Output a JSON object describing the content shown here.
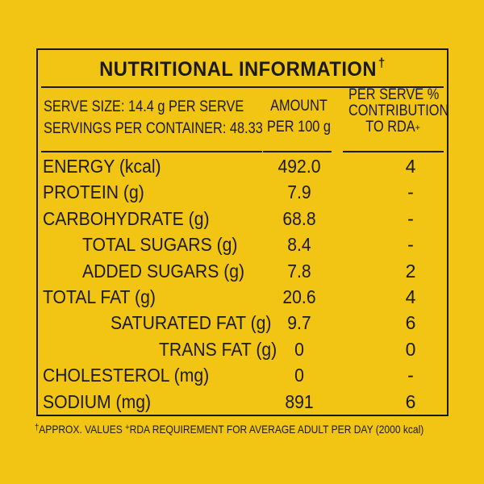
{
  "title": "NUTRITIONAL INFORMATION",
  "title_marker": "†",
  "header": {
    "serve_size": "SERVE SIZE: 14.4 g PER SERVE",
    "servings": "SERVINGS PER CONTAINER: 48.33",
    "amount_line1": "AMOUNT",
    "amount_line2": "PER 100 g",
    "rda_line1": "PER SERVE %",
    "rda_line2": "CONTRIBUTION",
    "rda_line3": "TO RDA",
    "rda_marker": "+"
  },
  "rows": [
    {
      "label": "ENERGY (kcal)",
      "amount": "492.0",
      "rda": "4"
    },
    {
      "label": "PROTEIN (g)",
      "amount": "7.9",
      "rda": "-"
    },
    {
      "label": "CARBOHYDRATE (g)",
      "amount": "68.8",
      "rda": "-"
    },
    {
      "label": "TOTAL SUGARS (g)",
      "amount": "8.4",
      "rda": "-"
    },
    {
      "label": "ADDED SUGARS (g)",
      "amount": "7.8",
      "rda": "2"
    },
    {
      "label": "TOTAL FAT (g)",
      "amount": "20.6",
      "rda": "4"
    },
    {
      "label": "SATURATED FAT (g)",
      "amount": "9.7",
      "rda": "6"
    },
    {
      "label": "TRANS FAT (g)",
      "amount": "0",
      "rda": "0"
    },
    {
      "label": "CHOLESTEROL (mg)",
      "amount": "0",
      "rda": "-"
    },
    {
      "label": "SODIUM (mg)",
      "amount": "891",
      "rda": "6"
    }
  ],
  "footnote": {
    "approx_marker": "†",
    "approx_text": "APPROX. VALUES",
    "rda_marker": "+",
    "rda_text": "RDA REQUIREMENT FOR AVERAGE ADULT PER DAY (2000 kcal)"
  },
  "colors": {
    "background": "#f2c414",
    "ink": "#1a1a1a"
  }
}
